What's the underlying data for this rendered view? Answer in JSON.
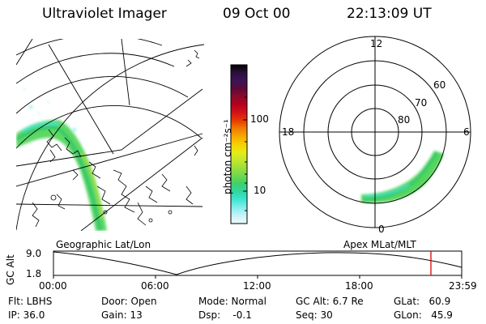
{
  "header": {
    "instrument": "Ultraviolet Imager",
    "date": "09 Oct 00",
    "time": "22:13:09 UT"
  },
  "colorbar": {
    "label": "photon cm⁻²s⁻¹",
    "ticks": [
      "100",
      "10"
    ],
    "colors": [
      "#000000",
      "#2b0f3d",
      "#3d1356",
      "#5a0b3a",
      "#8b0a2a",
      "#b5001f",
      "#d4101b",
      "#e53a00",
      "#f07a00",
      "#f6a800",
      "#f7d000",
      "#e7ea16",
      "#c4e82c",
      "#9bdf3c",
      "#6ed84e",
      "#3fd06a",
      "#2fd7a5",
      "#3ee6d2",
      "#86edee",
      "#c8f3f7",
      "#eefbfd"
    ]
  },
  "polar_plot": {
    "mlt_labels": {
      "top": "12",
      "left": "18",
      "right": "6",
      "bottom": "0"
    },
    "lat_labels": [
      "60",
      "70",
      "80"
    ]
  },
  "timeline": {
    "left_label": "Geographic Lat/Lon",
    "right_label": "Apex MLat/MLT",
    "axis_title": "GC Alt",
    "y_ticks": [
      "9.0",
      "1.8"
    ],
    "x_ticks": [
      "00:00",
      "06:00",
      "12:00",
      "18:00",
      "23:59"
    ],
    "marker_color": "#e00000"
  },
  "info": {
    "flt": "Flt: LBHS",
    "ip": "IP: 36.0",
    "door": "Door: Open",
    "gain": "Gain: 13",
    "mode": "Mode: Normal",
    "dsp": "Dsp:    -0.1",
    "gcalt": "GC Alt: 6.7 Re",
    "seq": "Seq: 30",
    "glat": "GLat:   60.9",
    "glon": "GLon:   45.9"
  }
}
